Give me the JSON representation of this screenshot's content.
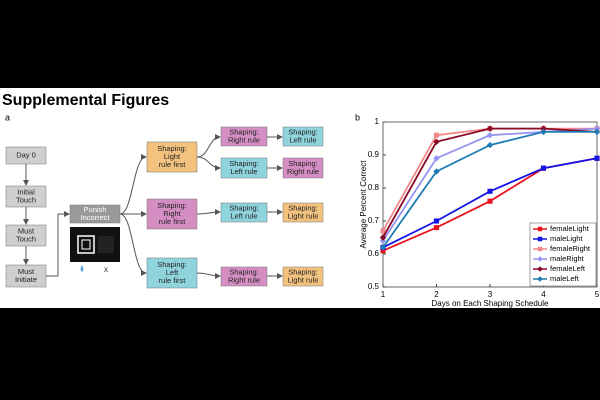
{
  "heading": "Supplemental Figures",
  "panels": [
    "a",
    "b"
  ],
  "diagram": {
    "nodes": [
      {
        "lines": [
          "Day 0"
        ]
      },
      {
        "lines": [
          "Initial",
          "Touch"
        ]
      },
      {
        "lines": [
          "Must",
          "Touch"
        ]
      },
      {
        "lines": [
          "Must",
          "Initiate"
        ]
      },
      {
        "lines": [
          "Punish",
          "Incorrect"
        ]
      },
      {
        "lines": [
          "Shaping:",
          "Light",
          "rule first"
        ]
      },
      {
        "lines": [
          "Shaping:",
          "Right",
          "rule first"
        ]
      },
      {
        "lines": [
          "Shaping:",
          "Left",
          "rule first"
        ]
      },
      {
        "lines": [
          "Shaping:",
          "Right rule"
        ]
      },
      {
        "lines": [
          "Shaping:",
          "Left rule"
        ]
      },
      {
        "lines": [
          "Shaping:",
          "Left rule"
        ]
      },
      {
        "lines": [
          "Shaping:",
          "Right rule"
        ]
      },
      {
        "lines": [
          "Shaping:",
          "Left rule"
        ]
      },
      {
        "lines": [
          "Shaping:",
          "Right rule"
        ]
      },
      {
        "lines": [
          "Shaping:",
          "Light rule"
        ]
      },
      {
        "lines": [
          "Shaping:",
          "Light rule"
        ]
      }
    ]
  },
  "chart_data": {
    "type": "line",
    "xlabel": "Days on Each Shaping Schedule",
    "ylabel": "Average Percent Correct",
    "x": [
      1,
      2,
      3,
      4,
      5
    ],
    "xlim": [
      1,
      5
    ],
    "xticks": [
      1,
      2,
      3,
      4,
      5
    ],
    "ylim": [
      0.5,
      1
    ],
    "yticks": [
      0.5,
      0.6,
      0.7,
      0.8,
      0.9,
      1
    ],
    "legend": "lower right",
    "series": [
      {
        "name": "femaleLight",
        "color": "#e8141e",
        "marker": "square",
        "values": [
          0.61,
          0.68,
          0.76,
          0.86,
          0.89
        ]
      },
      {
        "name": "maleLight",
        "color": "#1414e6",
        "marker": "square",
        "values": [
          0.62,
          0.7,
          0.79,
          0.86,
          0.89
        ]
      },
      {
        "name": "femaleRight",
        "color": "#f08888",
        "marker": "square",
        "values": [
          0.67,
          0.96,
          0.98,
          0.98,
          0.98
        ]
      },
      {
        "name": "maleRight",
        "color": "#9494f0",
        "marker": "diamond",
        "values": [
          0.64,
          0.89,
          0.96,
          0.97,
          0.98
        ]
      },
      {
        "name": "femaleLeft",
        "color": "#8b0a28",
        "marker": "diamond",
        "values": [
          0.65,
          0.94,
          0.98,
          0.98,
          0.97
        ]
      },
      {
        "name": "maleLeft",
        "color": "#1f7cb4",
        "marker": "diamond",
        "values": [
          0.62,
          0.85,
          0.93,
          0.97,
          0.97
        ]
      }
    ]
  }
}
